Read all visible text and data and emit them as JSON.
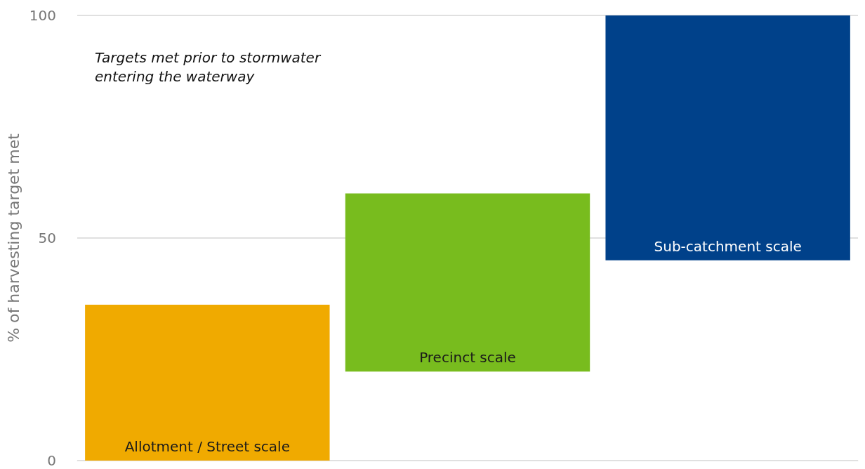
{
  "chart_data": {
    "type": "bar",
    "ylabel": "% of harvesting target met",
    "categories": [
      "Allotment / Street scale",
      "Precinct scale",
      "Sub-catchment scale"
    ],
    "values": [
      35,
      40,
      55
    ],
    "base": [
      0,
      20,
      45
    ],
    "colors": [
      "#f0aa00",
      "#78bc1e",
      "#00418a"
    ],
    "ylim": [
      0,
      100
    ],
    "yticks": [
      0,
      50,
      100
    ],
    "grid": "y",
    "annotations": [
      "Targets met prior to stormwater entering the waterway"
    ]
  }
}
